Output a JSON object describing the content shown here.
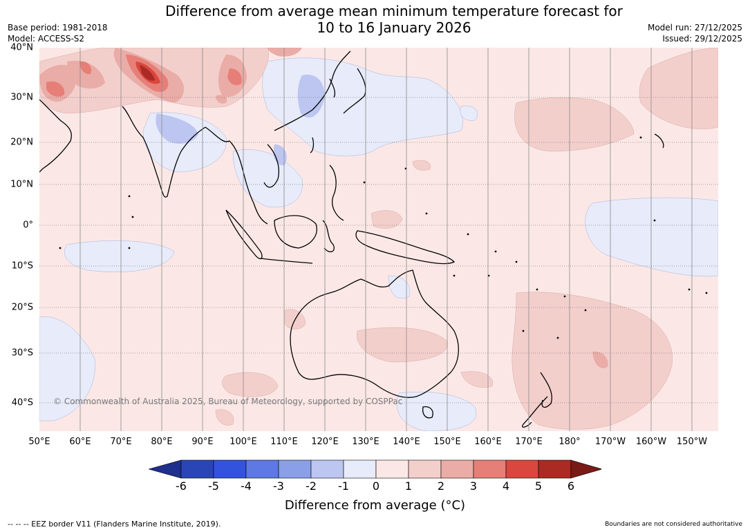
{
  "title_line1": "Difference from average mean minimum temperature forecast for",
  "title_line2": "10 to 16 January 2026",
  "meta_left": {
    "base_period": "Base period: 1981-2018",
    "model": "Model: ACCESS-S2"
  },
  "meta_right": {
    "model_run": "Model run: 27/12/2025",
    "issued": "Issued: 29/12/2025"
  },
  "map": {
    "lon_labels": [
      "50°E",
      "60°E",
      "70°E",
      "80°E",
      "90°E",
      "100°E",
      "110°E",
      "120°E",
      "130°E",
      "140°E",
      "150°E",
      "160°E",
      "170°E",
      "180°",
      "170°W",
      "160°W",
      "150°W"
    ],
    "lat_labels": [
      "40°N",
      "30°N",
      "20°N",
      "10°N",
      "0°",
      "10°S",
      "20°S",
      "30°S",
      "40°S"
    ],
    "watermark": "© Commonwealth of Australia 2025, Bureau of Meteorology, supported by COSPPac",
    "land_color": "#000000",
    "grid_color": "#555555"
  },
  "colorbar": {
    "ticks": [
      "-6",
      "-5",
      "-4",
      "-3",
      "-2",
      "-1",
      "0",
      "1",
      "2",
      "3",
      "4",
      "5",
      "6"
    ],
    "colors": [
      "#1f2f8c",
      "#2a46b6",
      "#3352dd",
      "#5e78e4",
      "#8b9ee8",
      "#bcc6f0",
      "#e7ebfa",
      "#fbe8e6",
      "#f3cfcc",
      "#eaaca7",
      "#e67f77",
      "#d9473f",
      "#ab2a24",
      "#7a1a16"
    ],
    "label": "Difference from average (°C)"
  },
  "footer": {
    "eez_note": "--  --  -- EEZ border V11 (Flanders Marine Institute, 2019).",
    "boundaries_note": "Boundaries are not considered authoritative"
  }
}
